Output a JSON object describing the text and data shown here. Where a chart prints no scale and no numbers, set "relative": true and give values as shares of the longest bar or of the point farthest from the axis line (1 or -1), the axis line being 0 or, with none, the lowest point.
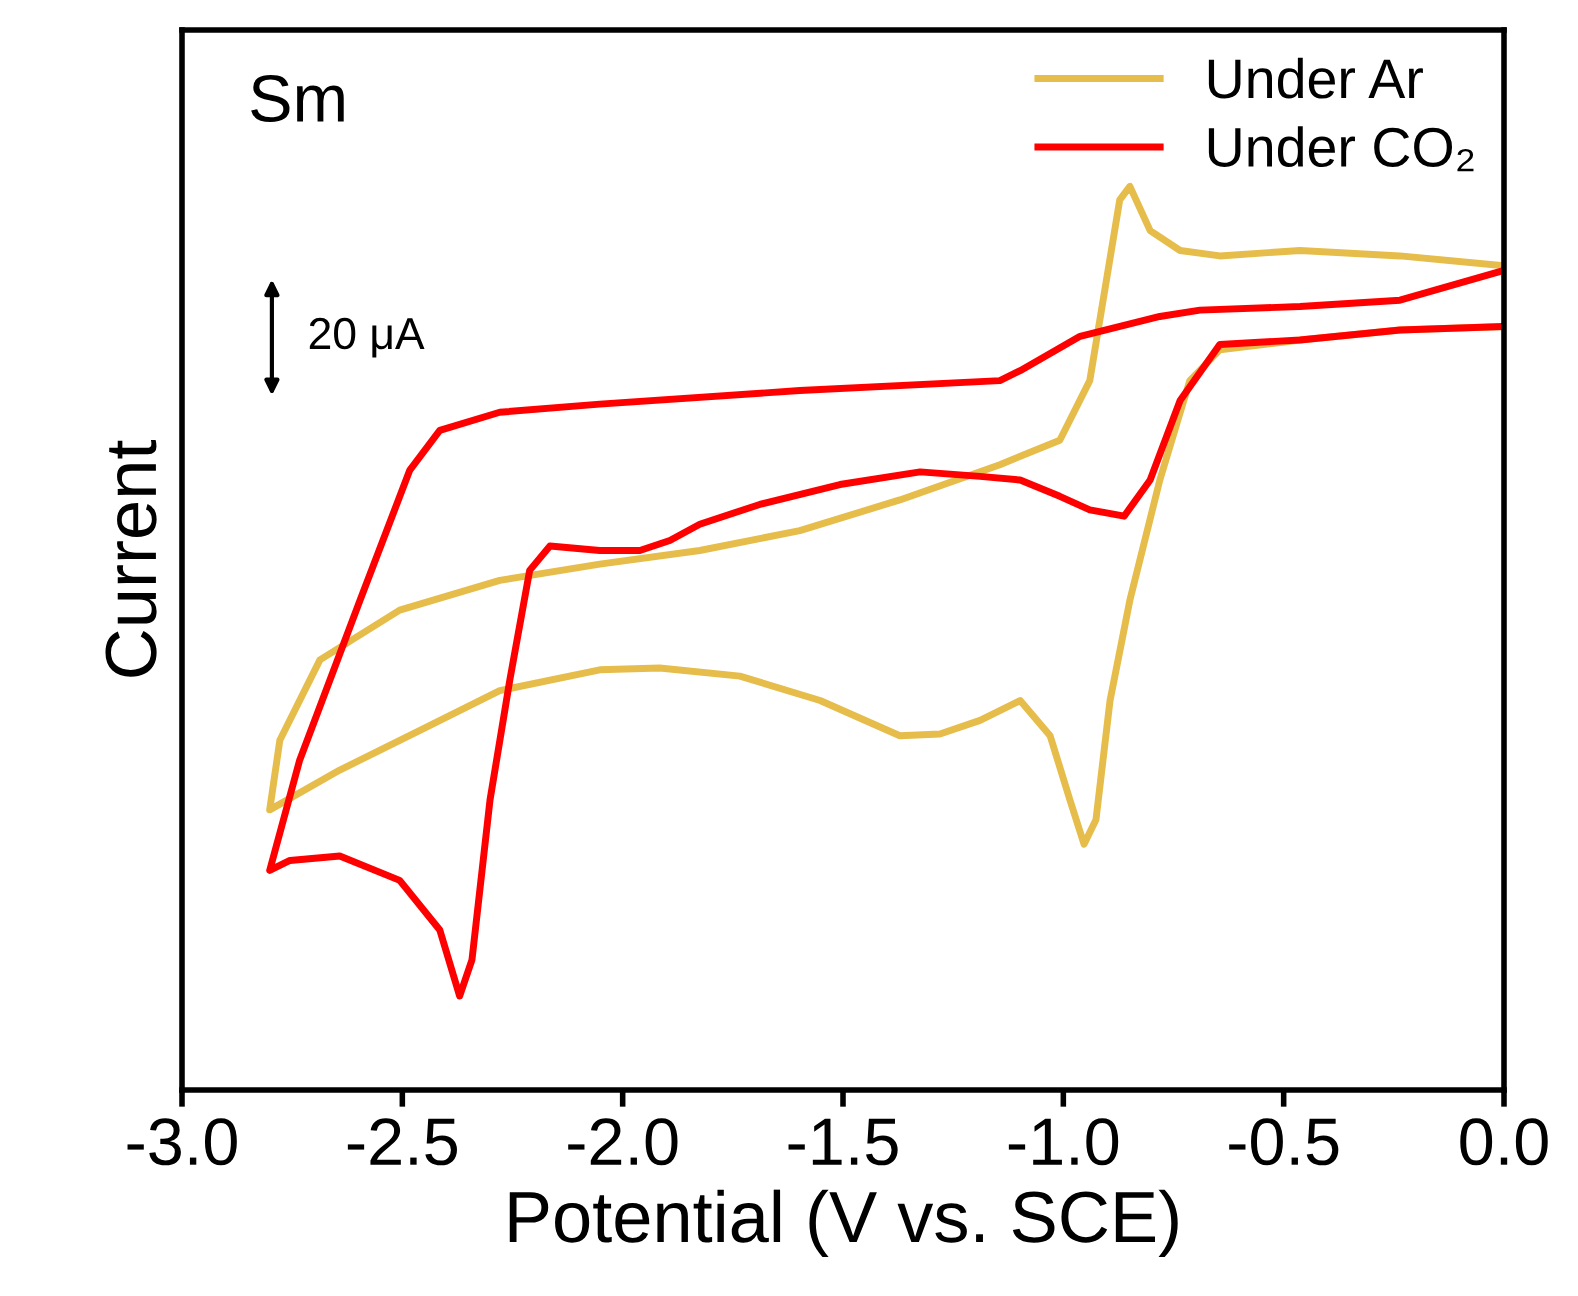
{
  "chart_data": {
    "type": "line",
    "relative": true,
    "xlabel": "Potential (V vs. SCE)",
    "ylabel": "Current",
    "annotations": [
      "Sm",
      "20 μA"
    ],
    "xlim": [
      -3.0,
      0.0
    ],
    "xticks": [
      {
        "value": -3.0,
        "label": "-3.0"
      },
      {
        "value": -2.5,
        "label": "-2.5"
      },
      {
        "value": -2.0,
        "label": "-2.0"
      },
      {
        "value": -1.5,
        "label": "-1.5"
      },
      {
        "value": -1.0,
        "label": "-1.0"
      },
      {
        "value": -0.5,
        "label": "-0.5"
      },
      {
        "value": 0.0,
        "label": "0.0"
      }
    ],
    "tick_labels": "x",
    "grid": false,
    "legend": "top right",
    "line_style": "solid",
    "marker": "none",
    "series": [
      {
        "name": "Under Ar",
        "color": "#e6bd4a",
        "x": [
          0,
          -0.236,
          -0.463,
          -0.645,
          -0.735,
          -0.803,
          -0.849,
          -0.872,
          -0.94,
          -1.008,
          -1.144,
          -1.371,
          -1.598,
          -1.825,
          -2.052,
          -2.279,
          -2.506,
          -2.687,
          -2.778,
          -2.801,
          -2.642,
          -2.46,
          -2.279,
          -2.052,
          -1.916,
          -1.734,
          -1.552,
          -1.371,
          -1.28,
          -1.189,
          -1.098,
          -1.03,
          -0.985,
          -0.953,
          -0.926,
          -0.894,
          -0.849,
          -0.781,
          -0.713,
          -0.645,
          -0.463,
          -0.236,
          0
        ],
        "values": [
          0.912,
          0.923,
          0.929,
          0.923,
          0.929,
          0.951,
          1.0,
          0.985,
          0.785,
          0.719,
          0.692,
          0.653,
          0.619,
          0.597,
          0.582,
          0.564,
          0.531,
          0.476,
          0.387,
          0.31,
          0.354,
          0.398,
          0.442,
          0.465,
          0.467,
          0.458,
          0.431,
          0.392,
          0.394,
          0.409,
          0.431,
          0.392,
          0.321,
          0.272,
          0.299,
          0.431,
          0.542,
          0.675,
          0.785,
          0.819,
          0.83,
          0.841,
          0.845
        ]
      },
      {
        "name": "Under CO₂",
        "color": "#ff0000",
        "x": [
          0,
          -0.236,
          -0.463,
          -0.69,
          -0.781,
          -0.962,
          -1.098,
          -1.144,
          -1.598,
          -2.052,
          -2.279,
          -2.415,
          -2.483,
          -2.596,
          -2.733,
          -2.801,
          -2.755,
          -2.642,
          -2.506,
          -2.415,
          -2.37,
          -2.342,
          -2.301,
          -2.256,
          -2.211,
          -2.165,
          -2.052,
          -1.961,
          -1.893,
          -1.825,
          -1.689,
          -1.507,
          -1.325,
          -1.189,
          -1.098,
          -1.008,
          -0.94,
          -0.862,
          -0.803,
          -0.735,
          -0.645,
          -0.463,
          -0.236,
          0
        ],
        "values": [
          0.907,
          0.874,
          0.867,
          0.863,
          0.856,
          0.834,
          0.796,
          0.785,
          0.774,
          0.759,
          0.75,
          0.73,
          0.686,
          0.542,
          0.365,
          0.243,
          0.254,
          0.259,
          0.232,
          0.177,
          0.104,
          0.144,
          0.321,
          0.454,
          0.575,
          0.602,
          0.597,
          0.597,
          0.608,
          0.626,
          0.648,
          0.67,
          0.684,
          0.679,
          0.675,
          0.657,
          0.642,
          0.635,
          0.675,
          0.763,
          0.825,
          0.83,
          0.841,
          0.845
        ]
      }
    ]
  }
}
